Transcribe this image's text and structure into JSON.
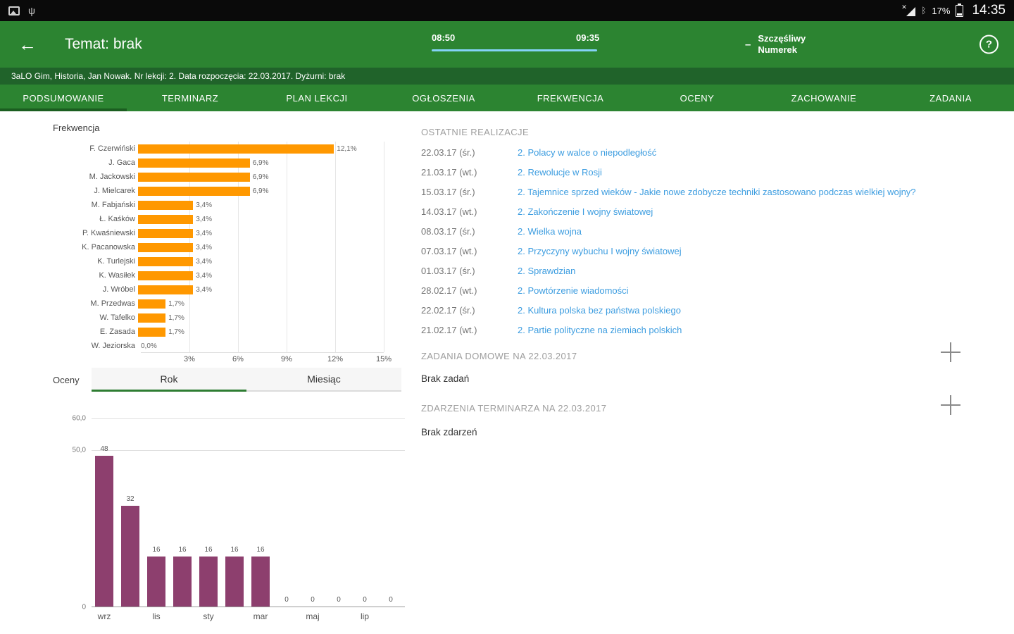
{
  "status_bar": {
    "battery": "17%",
    "time": "14:35"
  },
  "app_bar": {
    "title": "Temat: brak",
    "back_icon": "←",
    "time_start": "08:50",
    "time_end": "09:35",
    "lucky_dash": "–",
    "lucky_line1": "Szczęśliwy",
    "lucky_line2": "Numerek",
    "help_glyph": "?"
  },
  "info_bar": {
    "text": "3aLO Gim, Historia, Jan Nowak. Nr lekcji: 2. Data rozpoczęcia: 22.03.2017. Dyżurni: brak"
  },
  "tabs": [
    {
      "label": "PODSUMOWANIE",
      "active": true
    },
    {
      "label": "TERMINARZ",
      "active": false
    },
    {
      "label": "PLAN LEKCJI",
      "active": false
    },
    {
      "label": "OGŁOSZENIA",
      "active": false
    },
    {
      "label": "FREKWENCJA",
      "active": false
    },
    {
      "label": "OCENY",
      "active": false
    },
    {
      "label": "ZACHOWANIE",
      "active": false
    },
    {
      "label": "ZADANIA",
      "active": false
    }
  ],
  "left": {
    "frekwencja_title": "Frekwencja",
    "oceny_title": "Oceny",
    "toggle": {
      "rok": "Rok",
      "miesiac": "Miesiąc",
      "active": "Rok"
    }
  },
  "right": {
    "sections": {
      "realizacje_title": "OSTATNIE REALIZACJE",
      "zadania_title": "ZADANIA DOMOWE NA 22.03.2017",
      "zadania_empty": "Brak zadań",
      "zdarzenia_title": "ZDARZENIA TERMINARZA NA 22.03.2017",
      "zdarzenia_empty": "Brak zdarzeń"
    },
    "lessons": [
      {
        "date": "22.03.17 (śr.)",
        "topic": "2. Polacy w walce o niepodległość"
      },
      {
        "date": "21.03.17 (wt.)",
        "topic": "2. Rewolucje w Rosji"
      },
      {
        "date": "15.03.17 (śr.)",
        "topic": "2. Tajemnice sprzed wieków - Jakie nowe zdobycze techniki zastosowano podczas wielkiej wojny?"
      },
      {
        "date": "14.03.17 (wt.)",
        "topic": "2. Zakończenie I wojny światowej"
      },
      {
        "date": "08.03.17 (śr.)",
        "topic": "2. Wielka wojna"
      },
      {
        "date": "07.03.17 (wt.)",
        "topic": "2. Przyczyny wybuchu I wojny światowej"
      },
      {
        "date": "01.03.17 (śr.)",
        "topic": "2. Sprawdzian"
      },
      {
        "date": "28.02.17 (wt.)",
        "topic": "2. Powtórzenie wiadomości"
      },
      {
        "date": "22.02.17 (śr.)",
        "topic": "2. Kultura polska bez państwa polskiego"
      },
      {
        "date": "21.02.17 (wt.)",
        "topic": "2. Partie polityczne na ziemiach polskich"
      }
    ]
  },
  "colors": {
    "app_green": "#2c8431",
    "info_green": "#20632a",
    "tab_indicator": "#1b5e20",
    "bar_orange": "#ff9800",
    "bar_purple": "#8d3f6e",
    "link_blue": "#3d9de0",
    "progress_blue": "#84d2f6"
  },
  "chart_data": [
    {
      "type": "bar",
      "orientation": "horizontal",
      "title": "Frekwencja",
      "categories": [
        "F. Czerwiński",
        "J. Gaca",
        "M. Jackowski",
        "J. Mielcarek",
        "M. Fabjański",
        "Ł. Kaśków",
        "P. Kwaśniewski",
        "K. Pacanowska",
        "K. Turlejski",
        "K. Wasiłek",
        "J. Wróbel",
        "M. Przedwas",
        "W. Tafelko",
        "E. Zasada",
        "W. Jeziorska"
      ],
      "values": [
        12.1,
        6.9,
        6.9,
        6.9,
        3.4,
        3.4,
        3.4,
        3.4,
        3.4,
        3.4,
        3.4,
        1.7,
        1.7,
        1.7,
        0
      ],
      "value_labels": [
        "12,1%",
        "6,9%",
        "6,9%",
        "6,9%",
        "3,4%",
        "3,4%",
        "3,4%",
        "3,4%",
        "3,4%",
        "3,4%",
        "3,4%",
        "1,7%",
        "1,7%",
        "1,7%",
        "0,0%"
      ],
      "x_ticks": [
        {
          "value": 3,
          "label": "3%"
        },
        {
          "value": 6,
          "label": "6%"
        },
        {
          "value": 9,
          "label": "9%"
        },
        {
          "value": 12,
          "label": "12%"
        },
        {
          "value": 15,
          "label": "15%"
        }
      ],
      "xlim": [
        0,
        15
      ],
      "grid": true,
      "bar_color": "#ff9800"
    },
    {
      "type": "bar",
      "orientation": "vertical",
      "title": "Oceny (Rok)",
      "x_labels": [
        "wrz",
        "",
        "lis",
        "",
        "sty",
        "",
        "mar",
        "",
        "maj",
        "",
        "lip",
        ""
      ],
      "values": [
        48,
        32,
        16,
        16,
        16,
        16,
        16,
        0,
        0,
        0,
        0,
        0
      ],
      "value_labels": [
        "48",
        "32",
        "16",
        "16",
        "16",
        "16",
        "16",
        "0",
        "0",
        "0",
        "0",
        "0"
      ],
      "y_ticks": [
        {
          "value": 60,
          "label": "60,0"
        },
        {
          "value": 50,
          "label": "50,0"
        },
        {
          "value": 0,
          "label": "0"
        }
      ],
      "ylim": [
        0,
        60
      ],
      "grid": true,
      "bar_color": "#8d3f6e"
    }
  ]
}
